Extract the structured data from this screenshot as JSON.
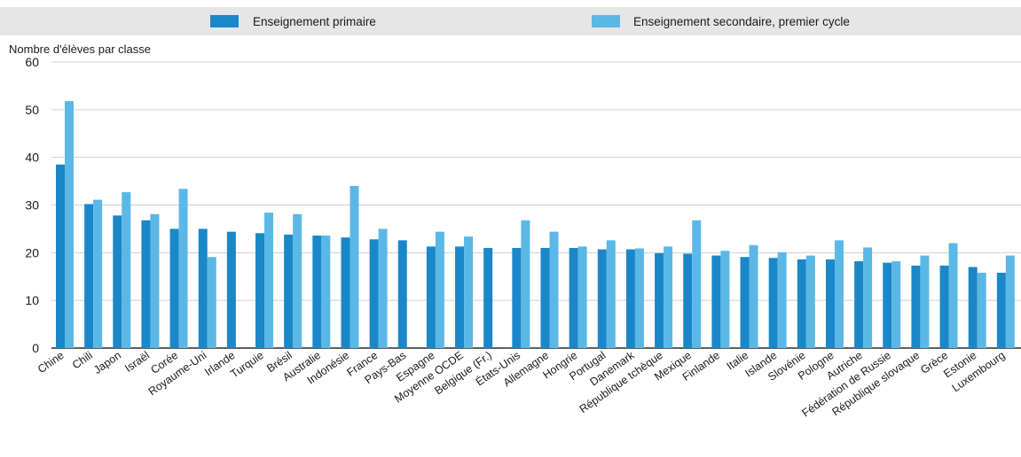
{
  "chart_data": {
    "type": "bar",
    "ylabel": "Nombre d'élèves par classe",
    "ylim": [
      0,
      60
    ],
    "yticks": [
      0,
      10,
      20,
      30,
      40,
      50,
      60
    ],
    "grid": "horizontal",
    "legend_position": "top",
    "categories": [
      "Chine",
      "Chili",
      "Japon",
      "Israël",
      "Corée",
      "Royaume-Uni",
      "Irlande",
      "Turquie",
      "Brésil",
      "Australie",
      "Indonésie",
      "France",
      "Pays-Bas",
      "Espagne",
      "Moyenne OCDE",
      "Belgique (Fr.)",
      "États-Unis",
      "Allemagne",
      "Hongrie",
      "Portugal",
      "Danemark",
      "République tchèque",
      "Mexique",
      "Finlande",
      "Italie",
      "Islande",
      "Slovénie",
      "Pologne",
      "Autriche",
      "Fédération de Russie",
      "République slovaque",
      "Grèce",
      "Estonie",
      "Luxembourg"
    ],
    "series": [
      {
        "name": "Enseignement primaire",
        "color": "#1a87c9",
        "values": [
          38.5,
          30.2,
          27.8,
          26.8,
          25.0,
          25.0,
          24.4,
          24.1,
          23.8,
          23.6,
          23.2,
          22.8,
          22.6,
          21.3,
          21.3,
          21.0,
          21.0,
          21.0,
          21.0,
          20.7,
          20.7,
          19.9,
          19.8,
          19.4,
          19.1,
          18.9,
          18.6,
          18.6,
          18.2,
          17.9,
          17.3,
          17.3,
          17.0,
          15.8
        ],
        "missing_indices": []
      },
      {
        "name": "Enseignement secondaire, premier cycle",
        "color": "#5bb8e6",
        "values": [
          51.8,
          31.1,
          32.7,
          28.1,
          33.4,
          19.1,
          null,
          28.4,
          28.1,
          23.6,
          34.0,
          25.0,
          null,
          24.4,
          23.4,
          null,
          26.8,
          24.4,
          21.3,
          22.6,
          20.9,
          21.3,
          26.8,
          20.4,
          21.6,
          20.1,
          19.4,
          22.6,
          21.1,
          18.2,
          19.4,
          22.0,
          15.8,
          19.4
        ]
      }
    ]
  }
}
